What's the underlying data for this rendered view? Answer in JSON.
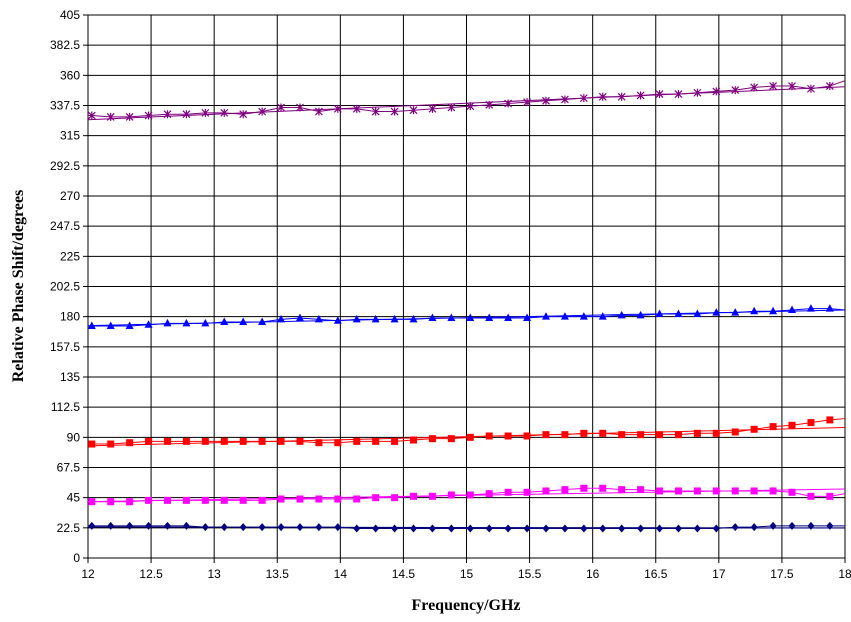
{
  "chart_data": {
    "type": "line",
    "title": "",
    "xlabel": "Frequency/GHz",
    "ylabel": "Relative Phase Shift/degrees",
    "xlim": [
      12,
      18
    ],
    "ylim": [
      0,
      405
    ],
    "x_ticks": [
      "12",
      "12.5",
      "13",
      "13.5",
      "14",
      "14.5",
      "15",
      "15.5",
      "16",
      "16.5",
      "17",
      "17.5",
      "18"
    ],
    "y_ticks": [
      "0",
      "22.5",
      "45",
      "67.5",
      "90",
      "112.5",
      "135",
      "157.5",
      "180",
      "202.5",
      "225",
      "247.5",
      "270",
      "292.5",
      "315",
      "337.5",
      "360",
      "382.5",
      "405"
    ],
    "grid": true,
    "legend": "none",
    "x": [
      12.03,
      12.18,
      12.33,
      12.48,
      12.63,
      12.78,
      12.93,
      13.08,
      13.23,
      13.38,
      13.53,
      13.68,
      13.83,
      13.98,
      14.13,
      14.28,
      14.43,
      14.58,
      14.73,
      14.88,
      15.03,
      15.18,
      15.33,
      15.48,
      15.63,
      15.78,
      15.93,
      16.08,
      16.23,
      16.38,
      16.53,
      16.68,
      16.83,
      16.98,
      17.13,
      17.28,
      17.43,
      17.58,
      17.73,
      17.88
    ],
    "series": [
      {
        "color": "#800080",
        "marker": "asterisk",
        "values": [
          330,
          329,
          329,
          330,
          331,
          331,
          332,
          332,
          331,
          333,
          336,
          336,
          333,
          335,
          335,
          333,
          333,
          334,
          335,
          336,
          337,
          338,
          339,
          340,
          341,
          342,
          343,
          344,
          344,
          345,
          346,
          346,
          347,
          348,
          349,
          351,
          352,
          352,
          350,
          352
        ],
        "trend_end": [
          18.0,
          356
        ]
      },
      {
        "color": "#0000ff",
        "marker": "triangle",
        "values": [
          173,
          173,
          173,
          174,
          175,
          175,
          175,
          176,
          176,
          176,
          178,
          179,
          178,
          177,
          178,
          178,
          178,
          178,
          179,
          179,
          179,
          179,
          179,
          179,
          180,
          180,
          180,
          180,
          181,
          181,
          182,
          182,
          182,
          183,
          183,
          184,
          184,
          185,
          186,
          186
        ],
        "trend_end": [
          18.0,
          185
        ]
      },
      {
        "color": "#ff0000",
        "marker": "square",
        "values": [
          85,
          85,
          86,
          87,
          87,
          87,
          87,
          87,
          87,
          87,
          87,
          87,
          86,
          86,
          87,
          87,
          87,
          88,
          89,
          89,
          90,
          91,
          91,
          91,
          92,
          92,
          93,
          93,
          92,
          92,
          92,
          92,
          93,
          93,
          94,
          96,
          98,
          99,
          101,
          103
        ],
        "trend_end": [
          18.0,
          104
        ]
      },
      {
        "color": "#ff00ff",
        "marker": "square",
        "values": [
          42,
          42,
          42,
          43,
          43,
          43,
          43,
          43,
          43,
          43,
          44,
          44,
          44,
          44,
          44,
          45,
          45,
          46,
          46,
          47,
          47,
          48,
          49,
          49,
          50,
          51,
          52,
          52,
          51,
          51,
          50,
          50,
          50,
          50,
          50,
          50,
          50,
          49,
          46,
          46
        ],
        "trend_end": [
          18.0,
          48
        ]
      },
      {
        "color": "#000080",
        "marker": "diamond",
        "values": [
          24,
          24,
          24,
          24,
          24,
          24,
          23,
          23,
          23,
          23,
          23,
          23,
          23,
          23,
          22,
          22,
          22,
          22,
          22,
          22,
          22,
          22,
          22,
          22,
          22,
          22,
          22,
          22,
          22,
          22,
          22,
          22,
          22,
          22,
          23,
          23,
          24,
          24,
          24,
          24
        ],
        "trend_end": [
          18.0,
          24
        ]
      }
    ]
  }
}
